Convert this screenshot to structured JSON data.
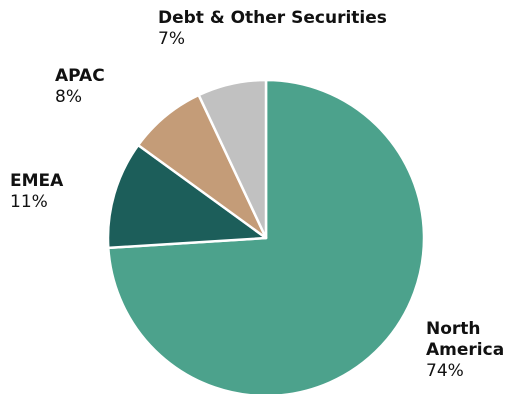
{
  "chart_data": {
    "type": "pie",
    "title": "",
    "start": "12 o'clock",
    "direction": "clockwise",
    "slices": [
      {
        "key": "na",
        "label": "North America",
        "value": 74,
        "display": "74%",
        "color": "#4ca28c"
      },
      {
        "key": "emea",
        "label": "EMEA",
        "value": 11,
        "display": "11%",
        "color": "#1c5e5a"
      },
      {
        "key": "apac",
        "label": "APAC",
        "value": 8,
        "display": "8%",
        "color": "#c49c78"
      },
      {
        "key": "debt",
        "label": "Debt & Other Securities",
        "value": 7,
        "display": "7%",
        "color": "#c1c1c1"
      }
    ]
  }
}
